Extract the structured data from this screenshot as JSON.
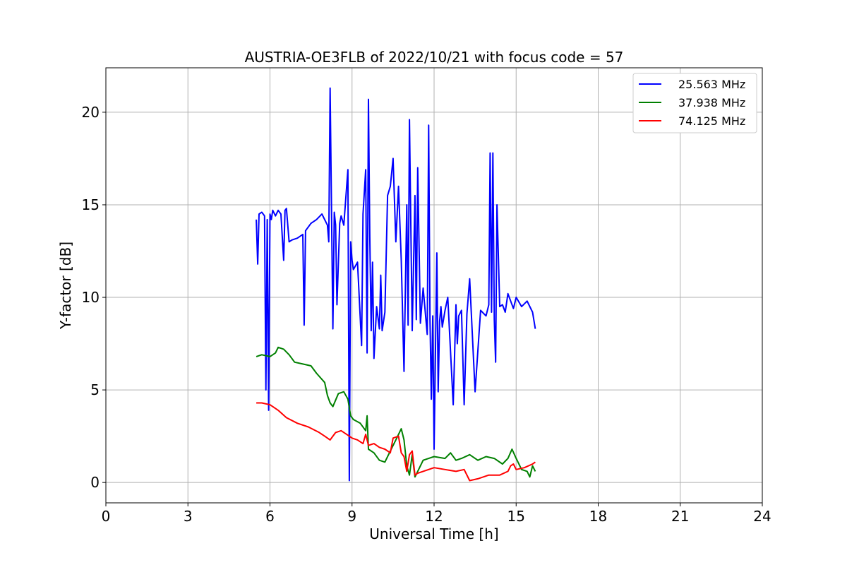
{
  "chart_data": {
    "type": "line",
    "title": "AUSTRIA-OE3FLB of 2022/10/21 with focus code = 57",
    "xlabel": "Universal Time [h]",
    "ylabel": "Y-factor [dB]",
    "xlim": [
      0,
      24
    ],
    "ylim": [
      -1.1,
      22.4
    ],
    "xticks": [
      0,
      3,
      6,
      9,
      12,
      15,
      18,
      21,
      24
    ],
    "yticks": [
      0,
      5,
      10,
      15,
      20
    ],
    "grid": true,
    "legend_position": "top-right",
    "series": [
      {
        "name": "25.563 MHz",
        "color": "#0000ff",
        "x": [
          5.5,
          5.55,
          5.6,
          5.7,
          5.8,
          5.85,
          5.9,
          5.95,
          6.0,
          6.05,
          6.1,
          6.2,
          6.3,
          6.4,
          6.5,
          6.55,
          6.6,
          6.7,
          6.8,
          7.0,
          7.2,
          7.25,
          7.3,
          7.5,
          7.7,
          7.9,
          8.1,
          8.15,
          8.2,
          8.3,
          8.35,
          8.4,
          8.45,
          8.55,
          8.6,
          8.7,
          8.85,
          8.9,
          8.95,
          9.0,
          9.05,
          9.2,
          9.35,
          9.4,
          9.5,
          9.55,
          9.6,
          9.65,
          9.7,
          9.75,
          9.8,
          9.9,
          10.0,
          10.05,
          10.1,
          10.2,
          10.3,
          10.4,
          10.5,
          10.6,
          10.7,
          10.8,
          10.9,
          11.0,
          11.05,
          11.1,
          11.2,
          11.3,
          11.35,
          11.4,
          11.5,
          11.6,
          11.75,
          11.8,
          11.85,
          11.9,
          11.95,
          12.0,
          12.1,
          12.15,
          12.2,
          12.25,
          12.3,
          12.4,
          12.5,
          12.7,
          12.8,
          12.85,
          12.9,
          13.0,
          13.1,
          13.2,
          13.3,
          13.5,
          13.7,
          13.9,
          14.0,
          14.05,
          14.1,
          14.15,
          14.2,
          14.25,
          14.3,
          14.4,
          14.5,
          14.6,
          14.7,
          14.9,
          15.0,
          15.2,
          15.4,
          15.6,
          15.7
        ],
        "y": [
          14.2,
          11.8,
          14.5,
          14.6,
          14.4,
          5.0,
          14.2,
          3.9,
          14.5,
          14.2,
          14.7,
          14.4,
          14.7,
          14.5,
          12.0,
          14.7,
          14.8,
          13.0,
          13.1,
          13.2,
          13.4,
          8.5,
          13.6,
          14.0,
          14.2,
          14.5,
          13.9,
          13.0,
          21.3,
          8.3,
          14.6,
          13.9,
          9.6,
          14.0,
          14.4,
          13.9,
          16.9,
          0.1,
          13.0,
          12.0,
          11.5,
          11.9,
          7.4,
          14.5,
          16.9,
          7.0,
          20.7,
          13.3,
          8.2,
          11.9,
          6.7,
          9.5,
          8.3,
          11.2,
          8.2,
          9.2,
          15.5,
          16.0,
          17.5,
          13.0,
          16.0,
          12.0,
          6.0,
          15.0,
          8.5,
          19.6,
          8.2,
          15.5,
          8.8,
          17.0,
          8.6,
          10.5,
          8.0,
          19.3,
          8.8,
          4.5,
          9.0,
          1.8,
          12.4,
          4.9,
          8.7,
          9.5,
          8.4,
          9.3,
          10.0,
          4.2,
          9.6,
          7.5,
          9.0,
          9.3,
          4.2,
          9.1,
          11.0,
          4.9,
          9.3,
          9.0,
          9.6,
          17.8,
          9.2,
          17.8,
          8.8,
          6.5,
          15.0,
          9.5,
          9.6,
          9.2,
          10.2,
          9.4,
          10.0,
          9.5,
          9.8,
          9.2,
          8.3
        ]
      },
      {
        "name": "37.938 MHz",
        "color": "#008000",
        "x": [
          5.5,
          5.7,
          6.0,
          6.2,
          6.3,
          6.5,
          6.7,
          6.9,
          7.2,
          7.5,
          7.7,
          8.0,
          8.1,
          8.2,
          8.3,
          8.5,
          8.7,
          8.85,
          8.95,
          9.05,
          9.3,
          9.5,
          9.55,
          9.6,
          9.8,
          10.0,
          10.2,
          10.4,
          10.6,
          10.8,
          10.9,
          11.0,
          11.1,
          11.2,
          11.3,
          11.4,
          11.6,
          11.8,
          12.0,
          12.4,
          12.6,
          12.8,
          13.0,
          13.3,
          13.6,
          13.9,
          14.2,
          14.5,
          14.7,
          14.85,
          15.0,
          15.2,
          15.4,
          15.5,
          15.6,
          15.7
        ],
        "y": [
          6.8,
          6.9,
          6.8,
          7.0,
          7.3,
          7.2,
          6.9,
          6.5,
          6.4,
          6.3,
          5.9,
          5.4,
          4.7,
          4.3,
          4.1,
          4.8,
          4.9,
          4.5,
          3.6,
          3.4,
          3.2,
          2.8,
          3.6,
          1.8,
          1.6,
          1.2,
          1.1,
          1.7,
          2.3,
          2.9,
          2.3,
          0.9,
          0.4,
          1.5,
          0.3,
          0.6,
          1.2,
          1.3,
          1.4,
          1.3,
          1.6,
          1.2,
          1.3,
          1.5,
          1.2,
          1.4,
          1.3,
          1.0,
          1.3,
          1.8,
          1.3,
          0.7,
          0.6,
          0.3,
          0.9,
          0.6
        ]
      },
      {
        "name": "74.125 MHz",
        "color": "#ff0000",
        "x": [
          5.5,
          5.7,
          6.0,
          6.3,
          6.6,
          7.0,
          7.4,
          7.8,
          8.0,
          8.2,
          8.4,
          8.6,
          8.9,
          9.0,
          9.2,
          9.4,
          9.5,
          9.55,
          9.6,
          9.8,
          10.0,
          10.2,
          10.4,
          10.5,
          10.7,
          10.8,
          10.9,
          11.0,
          11.1,
          11.2,
          11.3,
          11.4,
          11.6,
          12.0,
          12.4,
          12.8,
          13.1,
          13.3,
          13.6,
          14.0,
          14.4,
          14.7,
          14.8,
          14.9,
          15.0,
          15.3,
          15.6,
          15.7
        ],
        "y": [
          4.3,
          4.3,
          4.2,
          3.9,
          3.5,
          3.2,
          3.0,
          2.7,
          2.5,
          2.3,
          2.7,
          2.8,
          2.5,
          2.4,
          2.3,
          2.1,
          2.6,
          2.3,
          2.0,
          2.1,
          1.9,
          1.8,
          1.6,
          2.4,
          2.5,
          1.6,
          1.4,
          0.6,
          1.5,
          1.7,
          0.4,
          0.5,
          0.6,
          0.8,
          0.7,
          0.6,
          0.7,
          0.1,
          0.2,
          0.4,
          0.4,
          0.6,
          0.9,
          1.0,
          0.7,
          0.8,
          1.0,
          1.1
        ]
      }
    ]
  }
}
